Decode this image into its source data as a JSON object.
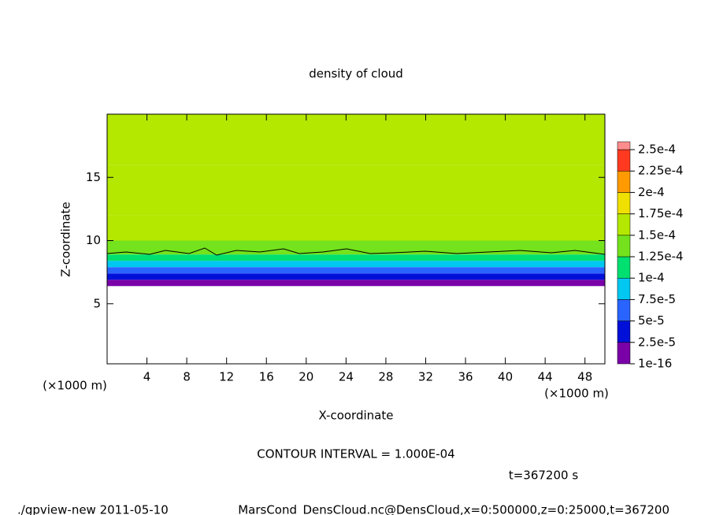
{
  "chart_data": {
    "type": "contour",
    "title": "density of cloud",
    "x_label": "X-coordinate",
    "y_label": "Z-coordinate",
    "x_unit": "(×1000 m)",
    "y_unit": "(×1000 m)",
    "xlim": [
      0,
      50
    ],
    "xticks": [
      4,
      8,
      12,
      16,
      20,
      24,
      28,
      32,
      36,
      40,
      44,
      48
    ],
    "ylim": [
      0.25,
      20
    ],
    "yticks": [
      5,
      10,
      15
    ],
    "z_edges": [
      6.4,
      6.9,
      7.4,
      7.9,
      8.4,
      8.9,
      10,
      12,
      16,
      20
    ],
    "values": [
      1e-05,
      4e-05,
      6e-05,
      9e-05,
      0.00011,
      0.00014,
      0.00016,
      0.00017,
      0.00015
    ],
    "levels": [
      {
        "value": 1e-16,
        "label": "1e-16"
      },
      {
        "value": 2.5e-05,
        "label": "2.5e-5"
      },
      {
        "value": 5e-05,
        "label": "5e-5"
      },
      {
        "value": 7.5e-05,
        "label": "7.5e-5"
      },
      {
        "value": 0.0001,
        "label": "1e-4"
      },
      {
        "value": 0.000125,
        "label": "1.25e-4"
      },
      {
        "value": 0.00015,
        "label": "1.5e-4"
      },
      {
        "value": 0.000175,
        "label": "1.75e-4"
      },
      {
        "value": 0.0002,
        "label": "2e-4"
      },
      {
        "value": 0.000225,
        "label": "2.25e-4"
      },
      {
        "value": 0.00025,
        "label": "2.5e-4"
      }
    ],
    "colors": [
      "#7a00a8",
      "#0010d8",
      "#2a64ff",
      "#00c8f0",
      "#00e070",
      "#74e21c",
      "#b4e800",
      "#f0e000",
      "#ff9a00",
      "#ff3a20",
      "#ff8c8c"
    ],
    "contour_annotation": "CONTOUR INTERVAL = 1.000E-04",
    "time_label": "t=367200 s",
    "footer_left": "./gpview-new   2011-05-10",
    "footer_right": "MarsCond_DensCloud.nc@DensCloud,x=0:500000,z=0:25000,t=367200"
  }
}
